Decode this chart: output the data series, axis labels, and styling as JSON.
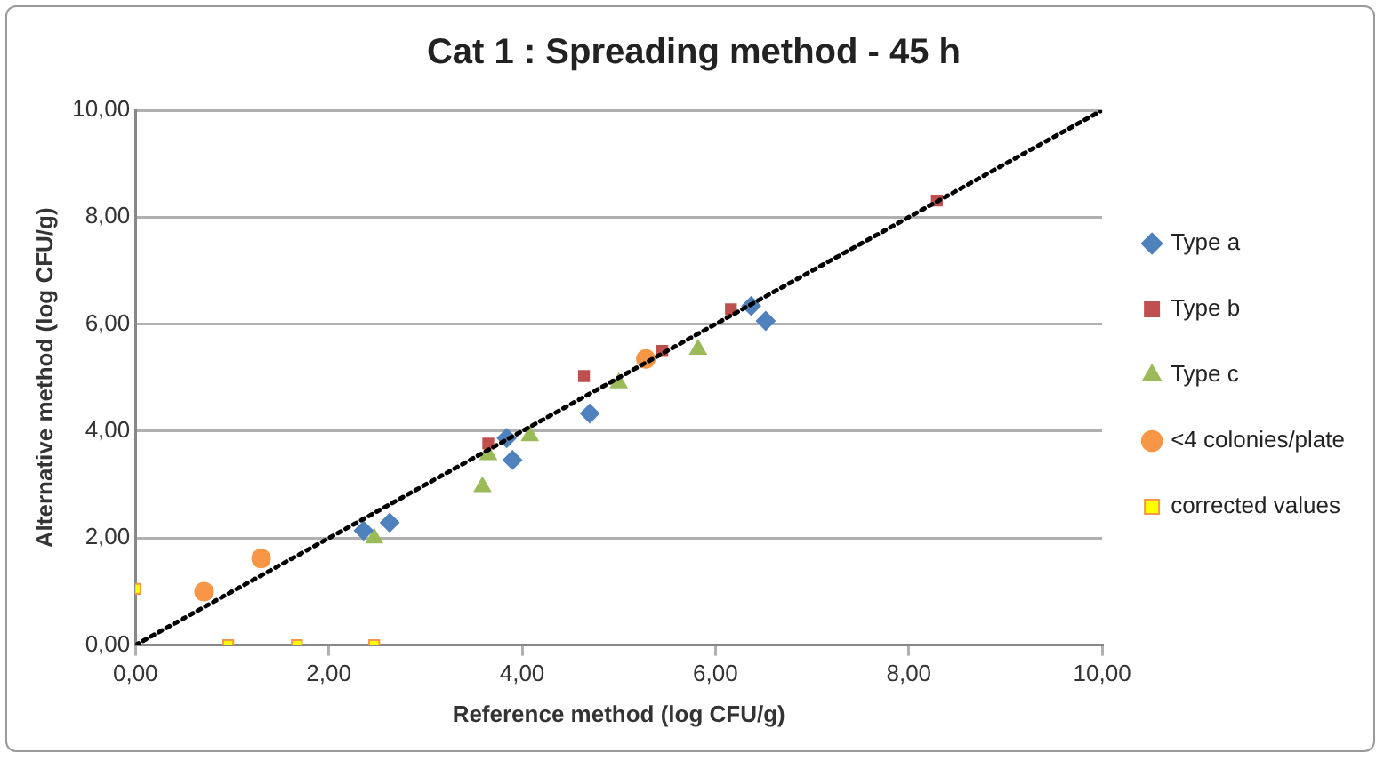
{
  "chart_data": {
    "type": "scatter",
    "title": "Cat 1 : Spreading method - 45 h",
    "xlabel": "Reference method (log CFU/g)",
    "ylabel": "Alternative method (log CFU/g)",
    "xlim": [
      0,
      10
    ],
    "ylim": [
      0,
      10
    ],
    "xticks": [
      {
        "value": 0,
        "label": "0,00"
      },
      {
        "value": 2,
        "label": "2,00"
      },
      {
        "value": 4,
        "label": "4,00"
      },
      {
        "value": 6,
        "label": "6,00"
      },
      {
        "value": 8,
        "label": "8,00"
      },
      {
        "value": 10,
        "label": "10,00"
      }
    ],
    "yticks": [
      {
        "value": 0,
        "label": "0,00"
      },
      {
        "value": 2,
        "label": "2,00"
      },
      {
        "value": 4,
        "label": "4,00"
      },
      {
        "value": 6,
        "label": "6,00"
      },
      {
        "value": 8,
        "label": "8,00"
      },
      {
        "value": 10,
        "label": "10,00"
      }
    ],
    "grid": "y",
    "legend": "right",
    "series": [
      {
        "type": "line",
        "color": "#000000",
        "line_style": "dotted",
        "marker": "none",
        "x": [
          0,
          10
        ],
        "values": [
          0,
          10
        ]
      },
      {
        "name": "Type a",
        "color": "#4f81bd",
        "marker": "diamond",
        "x": [
          2.36,
          2.63,
          3.84,
          3.9,
          4.7,
          6.37,
          6.52
        ],
        "values": [
          2.14,
          2.29,
          3.87,
          3.46,
          4.33,
          6.34,
          6.06
        ]
      },
      {
        "name": "Type b",
        "color": "#c0504d",
        "marker": "square",
        "x": [
          3.65,
          4.64,
          5.45,
          6.16,
          8.29
        ],
        "values": [
          3.77,
          5.03,
          5.5,
          6.28,
          8.31
        ]
      },
      {
        "name": "Type c",
        "color": "#9bbb59",
        "marker": "triangle",
        "x": [
          2.47,
          3.59,
          3.65,
          4.08,
          5.0,
          5.82
        ],
        "values": [
          2.0,
          2.96,
          3.56,
          3.91,
          4.9,
          5.53
        ]
      },
      {
        "name": "<4 colonies/plate",
        "color": "#f79646",
        "marker": "circle",
        "x": [
          0.71,
          1.3,
          5.28
        ],
        "values": [
          1.0,
          1.62,
          5.35
        ]
      },
      {
        "name": "corrected values",
        "color": "#ffff00",
        "marker": "square",
        "x": [
          0,
          0.96,
          1.67,
          2.47
        ],
        "values": [
          1.05,
          0,
          0,
          0
        ]
      }
    ]
  }
}
